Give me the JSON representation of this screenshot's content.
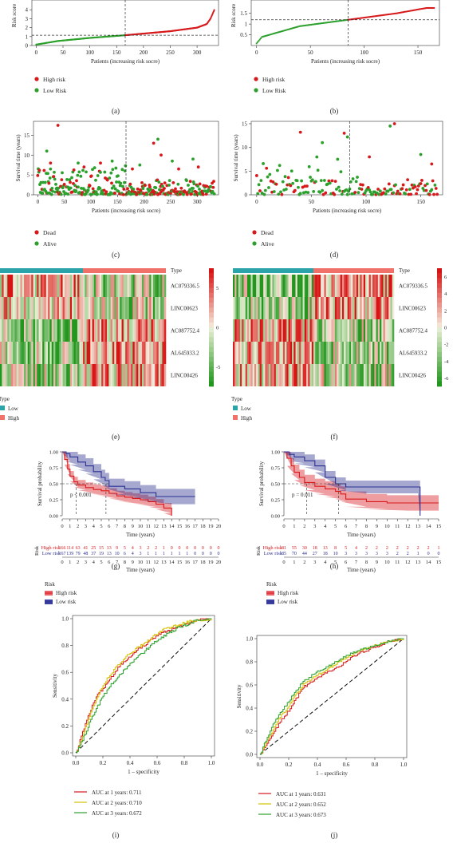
{
  "figure": {
    "panel_labels": [
      "(a)",
      "(b)",
      "(c)",
      "(d)",
      "(e)",
      "(f)",
      "(g)",
      "(h)",
      "(i)",
      "(j)"
    ]
  },
  "chart_data": [
    {
      "id": "a",
      "type": "scatter",
      "xlabel": "Patients (increasing risk socre)",
      "ylabel": "Risk score",
      "x_ticks": [
        0,
        50,
        100,
        150,
        200,
        250,
        300
      ],
      "y_ticks": [
        0,
        1,
        2,
        3,
        4
      ],
      "ylim": [
        0,
        4.2
      ],
      "xlim": [
        -8,
        340
      ],
      "cutoff_x": 166,
      "cutoff_y": 1.15,
      "n": 333,
      "curve": [
        [
          0,
          0.1
        ],
        [
          40,
          0.5
        ],
        [
          100,
          0.85
        ],
        [
          166,
          1.15
        ],
        [
          250,
          1.6
        ],
        [
          300,
          2.0
        ],
        [
          318,
          2.4
        ],
        [
          325,
          3.0
        ],
        [
          333,
          4.1
        ]
      ],
      "legend": [
        {
          "label": "High risk",
          "color": "#d7191c"
        },
        {
          "label": "Low Risk",
          "color": "#2ca02c"
        }
      ]
    },
    {
      "id": "b",
      "type": "scatter",
      "xlabel": "Patients (increasing risk socre)",
      "ylabel": "Risk score",
      "x_ticks": [
        0,
        50,
        100,
        150
      ],
      "y_ticks": [
        0.5,
        1.0,
        1.5
      ],
      "ylim": [
        0.0,
        1.75
      ],
      "xlim": [
        -5,
        170
      ],
      "cutoff_x": 85,
      "cutoff_y": 1.2,
      "n": 166,
      "curve": [
        [
          0,
          0.1
        ],
        [
          5,
          0.4
        ],
        [
          40,
          0.9
        ],
        [
          85,
          1.2
        ],
        [
          130,
          1.5
        ],
        [
          150,
          1.68
        ],
        [
          158,
          1.75
        ]
      ],
      "legend": [
        {
          "label": "High risk",
          "color": "#d7191c"
        },
        {
          "label": "Low Risk",
          "color": "#2ca02c"
        }
      ]
    },
    {
      "id": "c",
      "type": "scatter",
      "xlabel": "Patients (increasing risk socre)",
      "ylabel": "Survival time (years)",
      "x_ticks": [
        0,
        50,
        100,
        150,
        200,
        250,
        300
      ],
      "y_ticks": [
        0,
        5,
        10,
        15
      ],
      "ylim": [
        0,
        18.5
      ],
      "xlim": [
        -8,
        340
      ],
      "cutoff_x": 166,
      "n": 333,
      "highlights": [
        [
          38,
          17.5
        ],
        [
          17,
          11
        ],
        [
          24,
          8
        ],
        [
          76,
          8
        ],
        [
          87,
          7
        ],
        [
          107,
          6.8
        ],
        [
          118,
          8
        ],
        [
          140,
          8.5
        ],
        [
          178,
          6.5
        ],
        [
          192,
          7.5
        ],
        [
          218,
          13
        ],
        [
          226,
          14
        ],
        [
          232,
          10
        ],
        [
          253,
          8.5
        ],
        [
          265,
          6.5
        ],
        [
          292,
          9
        ],
        [
          302,
          7
        ]
      ],
      "legend": [
        {
          "label": "Dead",
          "color": "#d7191c"
        },
        {
          "label": "Alive",
          "color": "#2ca02c"
        }
      ]
    },
    {
      "id": "d",
      "type": "scatter",
      "xlabel": "Patients (increasing risk socre)",
      "ylabel": "Survival time (years)",
      "x_ticks": [
        0,
        50,
        100,
        150
      ],
      "y_ticks": [
        0,
        5,
        10,
        15
      ],
      "ylim": [
        0,
        15.5
      ],
      "xlim": [
        -5,
        170
      ],
      "cutoff_x": 85,
      "n": 166,
      "highlights": [
        [
          40,
          13.2
        ],
        [
          60,
          11
        ],
        [
          80,
          13
        ],
        [
          83,
          12.2
        ],
        [
          103,
          8
        ],
        [
          122,
          14.5
        ],
        [
          126,
          15
        ],
        [
          150,
          8.5
        ],
        [
          160,
          6.5
        ]
      ],
      "legend": [
        {
          "label": "Dead",
          "color": "#d7191c"
        },
        {
          "label": "Alive",
          "color": "#2ca02c"
        }
      ]
    },
    {
      "id": "e",
      "type": "heatmap",
      "rows": [
        "AC079336.5",
        "LINC00623",
        "AC087752.4",
        "AL645933.2",
        "LINC00426"
      ],
      "annotation_label": "Type",
      "colorbar_ticks": [
        5,
        0,
        -5
      ],
      "legend_title": "Type",
      "legend": [
        {
          "label": "Low",
          "color": "#2aa3a9"
        },
        {
          "label": "High",
          "color": "#f0716a"
        }
      ],
      "split_fraction": 0.5
    },
    {
      "id": "f",
      "type": "heatmap",
      "rows": [
        "AC079336.5",
        "LINC00623",
        "AC087752.4",
        "AL645933.2",
        "LINC00426"
      ],
      "annotation_label": "Type",
      "colorbar_ticks": [
        6,
        4,
        2,
        0,
        -2,
        -4,
        -6
      ],
      "legend_title": "Type",
      "legend": [
        {
          "label": "Low",
          "color": "#2aa3a9"
        },
        {
          "label": "High",
          "color": "#f0716a"
        }
      ],
      "split_fraction": 0.5
    },
    {
      "id": "g",
      "type": "line",
      "ylabel": "Survival probability",
      "xlabel": "Time (years)",
      "x_ticks": [
        0,
        1,
        2,
        3,
        4,
        5,
        6,
        7,
        8,
        9,
        10,
        11,
        12,
        13,
        14,
        15,
        16,
        17,
        18,
        19,
        20
      ],
      "y_ticks": [
        "0.00",
        "0.25",
        "0.50",
        "0.75",
        "1.00"
      ],
      "xlim": [
        0,
        20
      ],
      "ylim": [
        0,
        1
      ],
      "pvalue": "p < 0.001",
      "series": [
        {
          "name": "High risk",
          "color": "#d7191c",
          "x": [
            0,
            0.3,
            0.7,
            1.0,
            1.5,
            2.0,
            3.0,
            4.0,
            5.0,
            6.0,
            7.0,
            8.0,
            9.0,
            10.0,
            11.0,
            12.0,
            13.0,
            14.0
          ],
          "y": [
            1.0,
            0.88,
            0.73,
            0.62,
            0.53,
            0.48,
            0.44,
            0.41,
            0.39,
            0.35,
            0.31,
            0.29,
            0.27,
            0.25,
            0.22,
            0.18,
            0.12,
            0.0
          ],
          "band_width": 0.08
        },
        {
          "name": "Low risk",
          "color": "#2b2f8f",
          "x": [
            0,
            0.5,
            1.0,
            2.0,
            3.0,
            4.0,
            5.0,
            5.5,
            6.0,
            8.0,
            10.0,
            12.0,
            14.0,
            16.0,
            17.0
          ],
          "y": [
            1.0,
            0.97,
            0.92,
            0.84,
            0.78,
            0.69,
            0.6,
            0.55,
            0.46,
            0.42,
            0.36,
            0.3,
            0.3,
            0.3,
            0.3
          ],
          "band_width": 0.12
        }
      ],
      "risk_table": {
        "title": "Risk",
        "xlabel": "Time (years)",
        "rows": [
          {
            "name": "High risk",
            "color": "#d7191c",
            "values": [
              166,
              114,
              63,
              41,
              25,
              15,
              13,
              9,
              5,
              4,
              3,
              2,
              2,
              1,
              0,
              0,
              0,
              0,
              0,
              0,
              0
            ]
          },
          {
            "name": "Low risk",
            "color": "#2b2f8f",
            "values": [
              167,
              139,
              79,
              48,
              37,
              19,
              13,
              10,
              6,
              4,
              3,
              1,
              1,
              1,
              1,
              1,
              1,
              0,
              0,
              0,
              0
            ]
          }
        ]
      },
      "legend_title": "Risk",
      "legend": [
        {
          "label": "High risk",
          "color": "#e8626a"
        },
        {
          "label": "Low risk",
          "color": "#3b3fa0"
        }
      ]
    },
    {
      "id": "h",
      "type": "line",
      "ylabel": "Survival probability",
      "xlabel": "Time (years)",
      "x_ticks": [
        0,
        1,
        2,
        3,
        4,
        5,
        6,
        7,
        8,
        9,
        10,
        11,
        12,
        13,
        14,
        15
      ],
      "y_ticks": [
        "0.00",
        "0.25",
        "0.50",
        "0.75",
        "1.00"
      ],
      "xlim": [
        0,
        15
      ],
      "ylim": [
        0,
        1
      ],
      "pvalue": "p = 0.011",
      "series": [
        {
          "name": "High risk",
          "color": "#d7191c",
          "x": [
            0,
            0.3,
            0.7,
            1.0,
            1.5,
            2.0,
            3.0,
            4.0,
            5.0,
            5.5,
            6.0,
            8.0,
            10.0,
            12.0,
            13.0,
            13.5,
            14.0,
            15.0
          ],
          "y": [
            1.0,
            0.9,
            0.78,
            0.68,
            0.6,
            0.52,
            0.46,
            0.42,
            0.38,
            0.34,
            0.26,
            0.22,
            0.2,
            0.2,
            0.2,
            0.2,
            0.2,
            0.2
          ],
          "band_width": 0.12
        },
        {
          "name": "Low risk",
          "color": "#2b2f8f",
          "x": [
            0,
            0.5,
            1.0,
            2.0,
            3.0,
            4.0,
            5.0,
            6.0,
            8.0,
            10.0,
            12.0,
            13.0,
            13.2
          ],
          "y": [
            1.0,
            0.96,
            0.92,
            0.86,
            0.78,
            0.6,
            0.5,
            0.45,
            0.45,
            0.45,
            0.45,
            0.45,
            0.0
          ],
          "band_width": 0.1
        }
      ],
      "risk_table": {
        "title": "Risk",
        "xlabel": "Time (years)",
        "rows": [
          {
            "name": "High risk",
            "color": "#d7191c",
            "values": [
              81,
              55,
              30,
              18,
              13,
              8,
              5,
              4,
              2,
              2,
              2,
              2,
              2,
              2,
              2,
              1
            ]
          },
          {
            "name": "Low risk",
            "color": "#2b2f8f",
            "values": [
              85,
              70,
              44,
              27,
              18,
              10,
              3,
              3,
              3,
              3,
              3,
              2,
              2,
              1,
              0,
              0
            ]
          }
        ]
      },
      "legend_title": "Risk",
      "legend": [
        {
          "label": "High risk",
          "color": "#e8626a"
        },
        {
          "label": "Low risk",
          "color": "#3b3fa0"
        }
      ]
    },
    {
      "id": "i",
      "type": "line",
      "xlabel": "1 – specificity",
      "ylabel": "Sensitivity",
      "x_ticks": [
        "0.0",
        "0.2",
        "0.4",
        "0.6",
        "0.8",
        "1.0"
      ],
      "y_ticks": [
        "0.0",
        "0.2",
        "0.4",
        "0.6",
        "0.8",
        "1.0"
      ],
      "xlim": [
        0,
        1
      ],
      "ylim": [
        0,
        1
      ],
      "series": [
        {
          "name": "AUC at 1 years: 0.711",
          "color": "#d7191c",
          "x": [
            0,
            0.05,
            0.1,
            0.15,
            0.2,
            0.25,
            0.3,
            0.35,
            0.4,
            0.45,
            0.5,
            0.55,
            0.6,
            0.65,
            0.7,
            0.75,
            0.8,
            0.85,
            0.9,
            1.0
          ],
          "y": [
            0,
            0.15,
            0.3,
            0.42,
            0.48,
            0.55,
            0.62,
            0.68,
            0.72,
            0.77,
            0.8,
            0.84,
            0.88,
            0.9,
            0.92,
            0.94,
            0.96,
            0.97,
            0.99,
            1.0
          ]
        },
        {
          "name": "AUC at 2 years: 0.710",
          "color": "#d6c100",
          "x": [
            0,
            0.05,
            0.1,
            0.15,
            0.2,
            0.25,
            0.3,
            0.35,
            0.4,
            0.45,
            0.5,
            0.55,
            0.6,
            0.65,
            0.7,
            0.75,
            0.8,
            0.85,
            0.9,
            1.0
          ],
          "y": [
            0,
            0.12,
            0.28,
            0.4,
            0.5,
            0.58,
            0.64,
            0.7,
            0.74,
            0.78,
            0.81,
            0.85,
            0.89,
            0.92,
            0.94,
            0.95,
            0.97,
            0.98,
            0.99,
            1.0
          ]
        },
        {
          "name": "AUC at 3 years: 0.672",
          "color": "#2ca02c",
          "x": [
            0,
            0.05,
            0.1,
            0.15,
            0.2,
            0.25,
            0.3,
            0.35,
            0.4,
            0.45,
            0.5,
            0.55,
            0.6,
            0.65,
            0.7,
            0.75,
            0.8,
            0.85,
            0.9,
            1.0
          ],
          "y": [
            0,
            0.1,
            0.22,
            0.33,
            0.42,
            0.5,
            0.55,
            0.61,
            0.66,
            0.71,
            0.75,
            0.8,
            0.84,
            0.87,
            0.9,
            0.93,
            0.95,
            0.97,
            0.99,
            1.0
          ]
        }
      ],
      "diagonal": true
    },
    {
      "id": "j",
      "type": "line",
      "xlabel": "1 – specificity",
      "ylabel": "Sensitivity",
      "x_ticks": [
        "0.0",
        "0.2",
        "0.4",
        "0.6",
        "0.8",
        "1.0"
      ],
      "y_ticks": [
        "0.0",
        "0.2",
        "0.4",
        "0.6",
        "0.8",
        "1.0"
      ],
      "xlim": [
        0,
        1
      ],
      "ylim": [
        0,
        1
      ],
      "series": [
        {
          "name": "AUC at 1 years: 0.631",
          "color": "#d7191c",
          "x": [
            0,
            0.05,
            0.1,
            0.15,
            0.2,
            0.25,
            0.3,
            0.35,
            0.4,
            0.45,
            0.5,
            0.55,
            0.6,
            0.65,
            0.7,
            0.75,
            0.8,
            0.85,
            0.9,
            1.0
          ],
          "y": [
            0,
            0.1,
            0.2,
            0.3,
            0.38,
            0.48,
            0.58,
            0.62,
            0.66,
            0.7,
            0.72,
            0.76,
            0.8,
            0.85,
            0.88,
            0.9,
            0.93,
            0.95,
            0.98,
            1.0
          ]
        },
        {
          "name": "AUC at 2 years: 0.652",
          "color": "#d6c100",
          "x": [
            0,
            0.05,
            0.1,
            0.15,
            0.2,
            0.25,
            0.3,
            0.35,
            0.4,
            0.45,
            0.5,
            0.55,
            0.6,
            0.65,
            0.7,
            0.75,
            0.8,
            0.85,
            0.9,
            1.0
          ],
          "y": [
            0,
            0.12,
            0.24,
            0.34,
            0.42,
            0.52,
            0.6,
            0.64,
            0.69,
            0.72,
            0.76,
            0.8,
            0.83,
            0.87,
            0.9,
            0.92,
            0.94,
            0.96,
            0.98,
            1.0
          ]
        },
        {
          "name": "AUC at 3 years: 0.673",
          "color": "#2ca02c",
          "x": [
            0,
            0.05,
            0.1,
            0.15,
            0.2,
            0.25,
            0.3,
            0.35,
            0.4,
            0.45,
            0.5,
            0.55,
            0.6,
            0.65,
            0.7,
            0.75,
            0.8,
            0.85,
            0.9,
            1.0
          ],
          "y": [
            0,
            0.15,
            0.28,
            0.38,
            0.46,
            0.55,
            0.63,
            0.67,
            0.72,
            0.75,
            0.78,
            0.82,
            0.85,
            0.88,
            0.9,
            0.92,
            0.94,
            0.96,
            0.98,
            1.0
          ]
        }
      ],
      "diagonal": true
    }
  ]
}
